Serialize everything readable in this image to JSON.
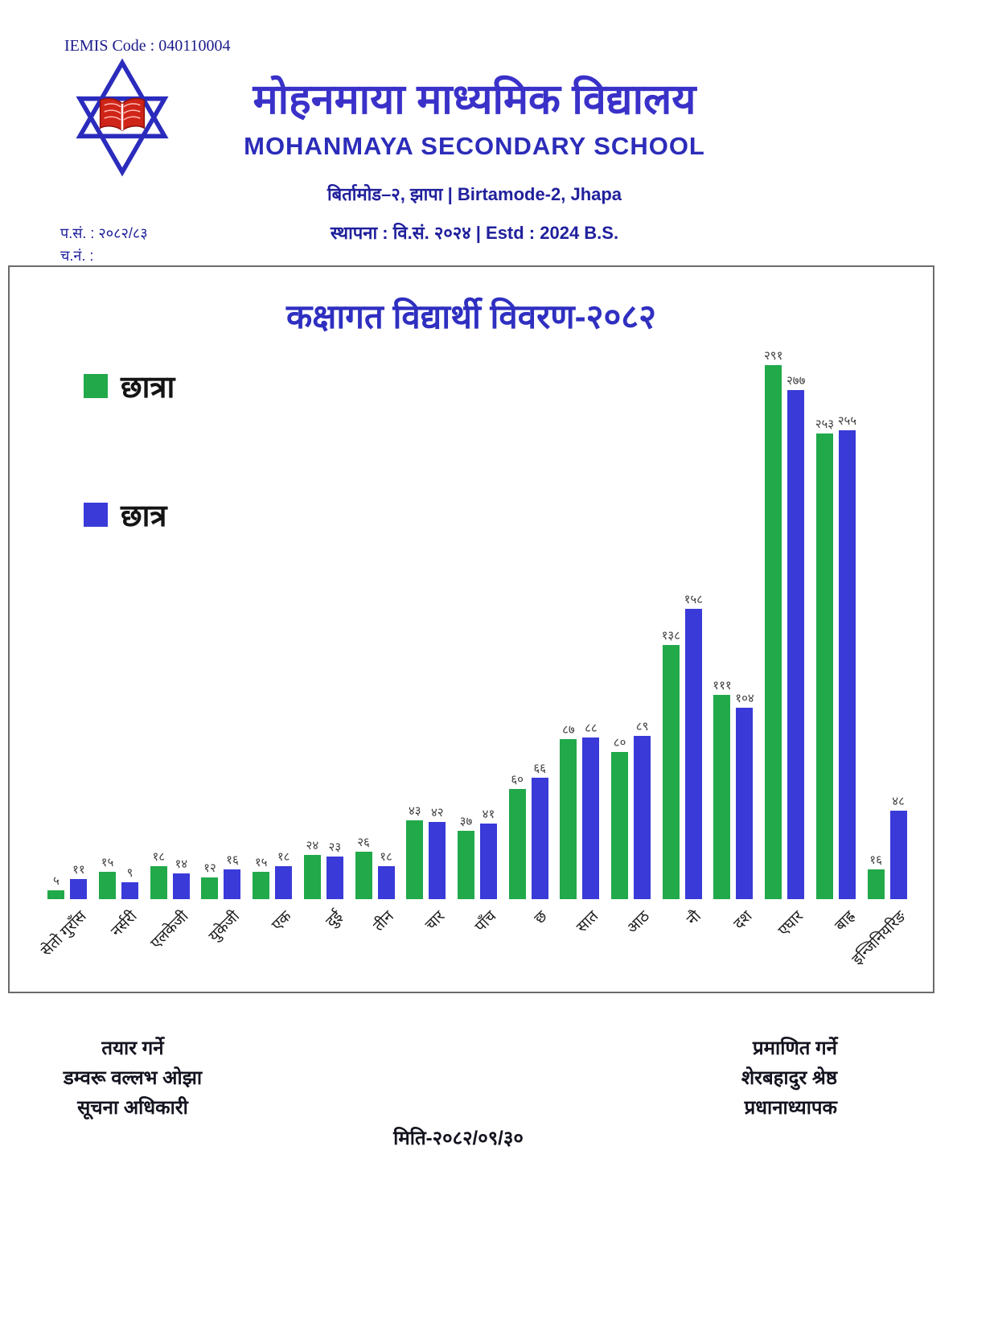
{
  "header": {
    "iemis": "IEMIS Code : 040110004",
    "school_name_np": "मोहनमाया माध्यमिक विद्यालय",
    "school_name_en": "MOHANMAYA SECONDARY SCHOOL",
    "address": "बिर्तामोड–२, झापा | Birtamode-2, Jhapa",
    "ref_no": "प.सं. :  २०८२/८३",
    "ch_no": "च.नं. :",
    "estd": "स्थापना : वि.सं. २०२४ | Estd : 2024 B.S."
  },
  "chart": {
    "title": "कक्षागत विद्यार्थी विवरण-२०८२",
    "legend": [
      {
        "label": "छात्रा",
        "color": "#21a94a"
      },
      {
        "label": "छात्र",
        "color": "#3a3ad9"
      }
    ]
  },
  "chart_data": {
    "type": "bar",
    "title": "कक्षागत विद्यार्थी विवरण-२०८२",
    "categories": [
      "सेतो गुराँस",
      "नर्सरी",
      "एलकेजी",
      "युकेजी",
      "एक",
      "दुई",
      "तीन",
      "चार",
      "पाँच",
      "छ",
      "सात",
      "आठ",
      "नौ",
      "दश",
      "एघार",
      "बाह्र",
      "इन्जिनियरिङ"
    ],
    "series": [
      {
        "name": "छात्रा",
        "color": "#21a94a",
        "values": [
          5,
          15,
          18,
          12,
          15,
          24,
          26,
          43,
          37,
          60,
          87,
          80,
          138,
          111,
          291,
          253,
          16
        ],
        "labels": [
          "५",
          "१५",
          "१८",
          "१२",
          "१५",
          "२४",
          "२६",
          "४३",
          "३७",
          "६०",
          "८७",
          "८०",
          "१३८",
          "१११",
          "२९१",
          "२५३",
          "१६"
        ]
      },
      {
        "name": "छात्र",
        "color": "#3a3ad9",
        "values": [
          11,
          9,
          14,
          16,
          18,
          23,
          18,
          42,
          41,
          66,
          88,
          89,
          158,
          104,
          277,
          255,
          48
        ],
        "labels": [
          "११",
          "९",
          "१४",
          "१६",
          "१८",
          "२३",
          "१८",
          "४२",
          "४१",
          "६६",
          "८८",
          "८९",
          "१५८",
          "१०४",
          "२७७",
          "२५५",
          "४८"
        ]
      }
    ],
    "ylim": [
      0,
      300
    ],
    "grid": false,
    "legend_position": "left",
    "xlabel": "",
    "ylabel": ""
  },
  "footer": {
    "prepared": {
      "l1": "तयार गर्ने",
      "l2": "डम्वरू वल्लभ ओझा",
      "l3": "सूचना अधिकारी"
    },
    "certified": {
      "l1": "प्रमाणित गर्ने",
      "l2": "शेरबहादुर श्रेष्ठ",
      "l3": "प्रधानाध्यापक"
    },
    "date": "मिति-२०८२/०९/३०"
  },
  "colors": {
    "accent_blue": "#2f2fc1",
    "navy": "#20209d",
    "bar_green": "#21a94a",
    "bar_blue": "#3a3ad9"
  }
}
